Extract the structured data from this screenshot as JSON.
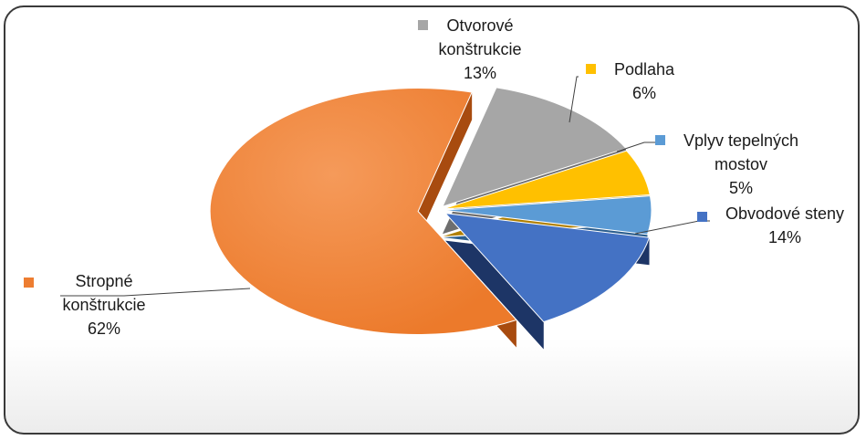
{
  "chart_data": {
    "type": "pie",
    "title": "",
    "slices": [
      {
        "id": "otvorove",
        "label_lines": [
          "Otvorové",
          "konštrukcie"
        ],
        "pct_text": "13%",
        "value": 13,
        "color": "#a6a6a6",
        "dark": "#6e6e6e"
      },
      {
        "id": "podlaha",
        "label_lines": [
          "Podlaha"
        ],
        "pct_text": "6%",
        "value": 6,
        "color": "#ffc000",
        "dark": "#b07f00"
      },
      {
        "id": "vplyv",
        "label_lines": [
          "Vplyv tepelných",
          "mostov"
        ],
        "pct_text": "5%",
        "value": 5,
        "color": "#5b9bd5",
        "dark": "#2c5f8f"
      },
      {
        "id": "obvodove",
        "label_lines": [
          "Obvodové steny"
        ],
        "pct_text": "14%",
        "value": 14,
        "color": "#4472c4",
        "dark": "#1d3566"
      },
      {
        "id": "stropne",
        "label_lines": [
          "Stropné",
          "konštrukcie"
        ],
        "pct_text": "62%",
        "value": 62,
        "color": "#ed7d31",
        "dark": "#a84b0f"
      }
    ]
  }
}
